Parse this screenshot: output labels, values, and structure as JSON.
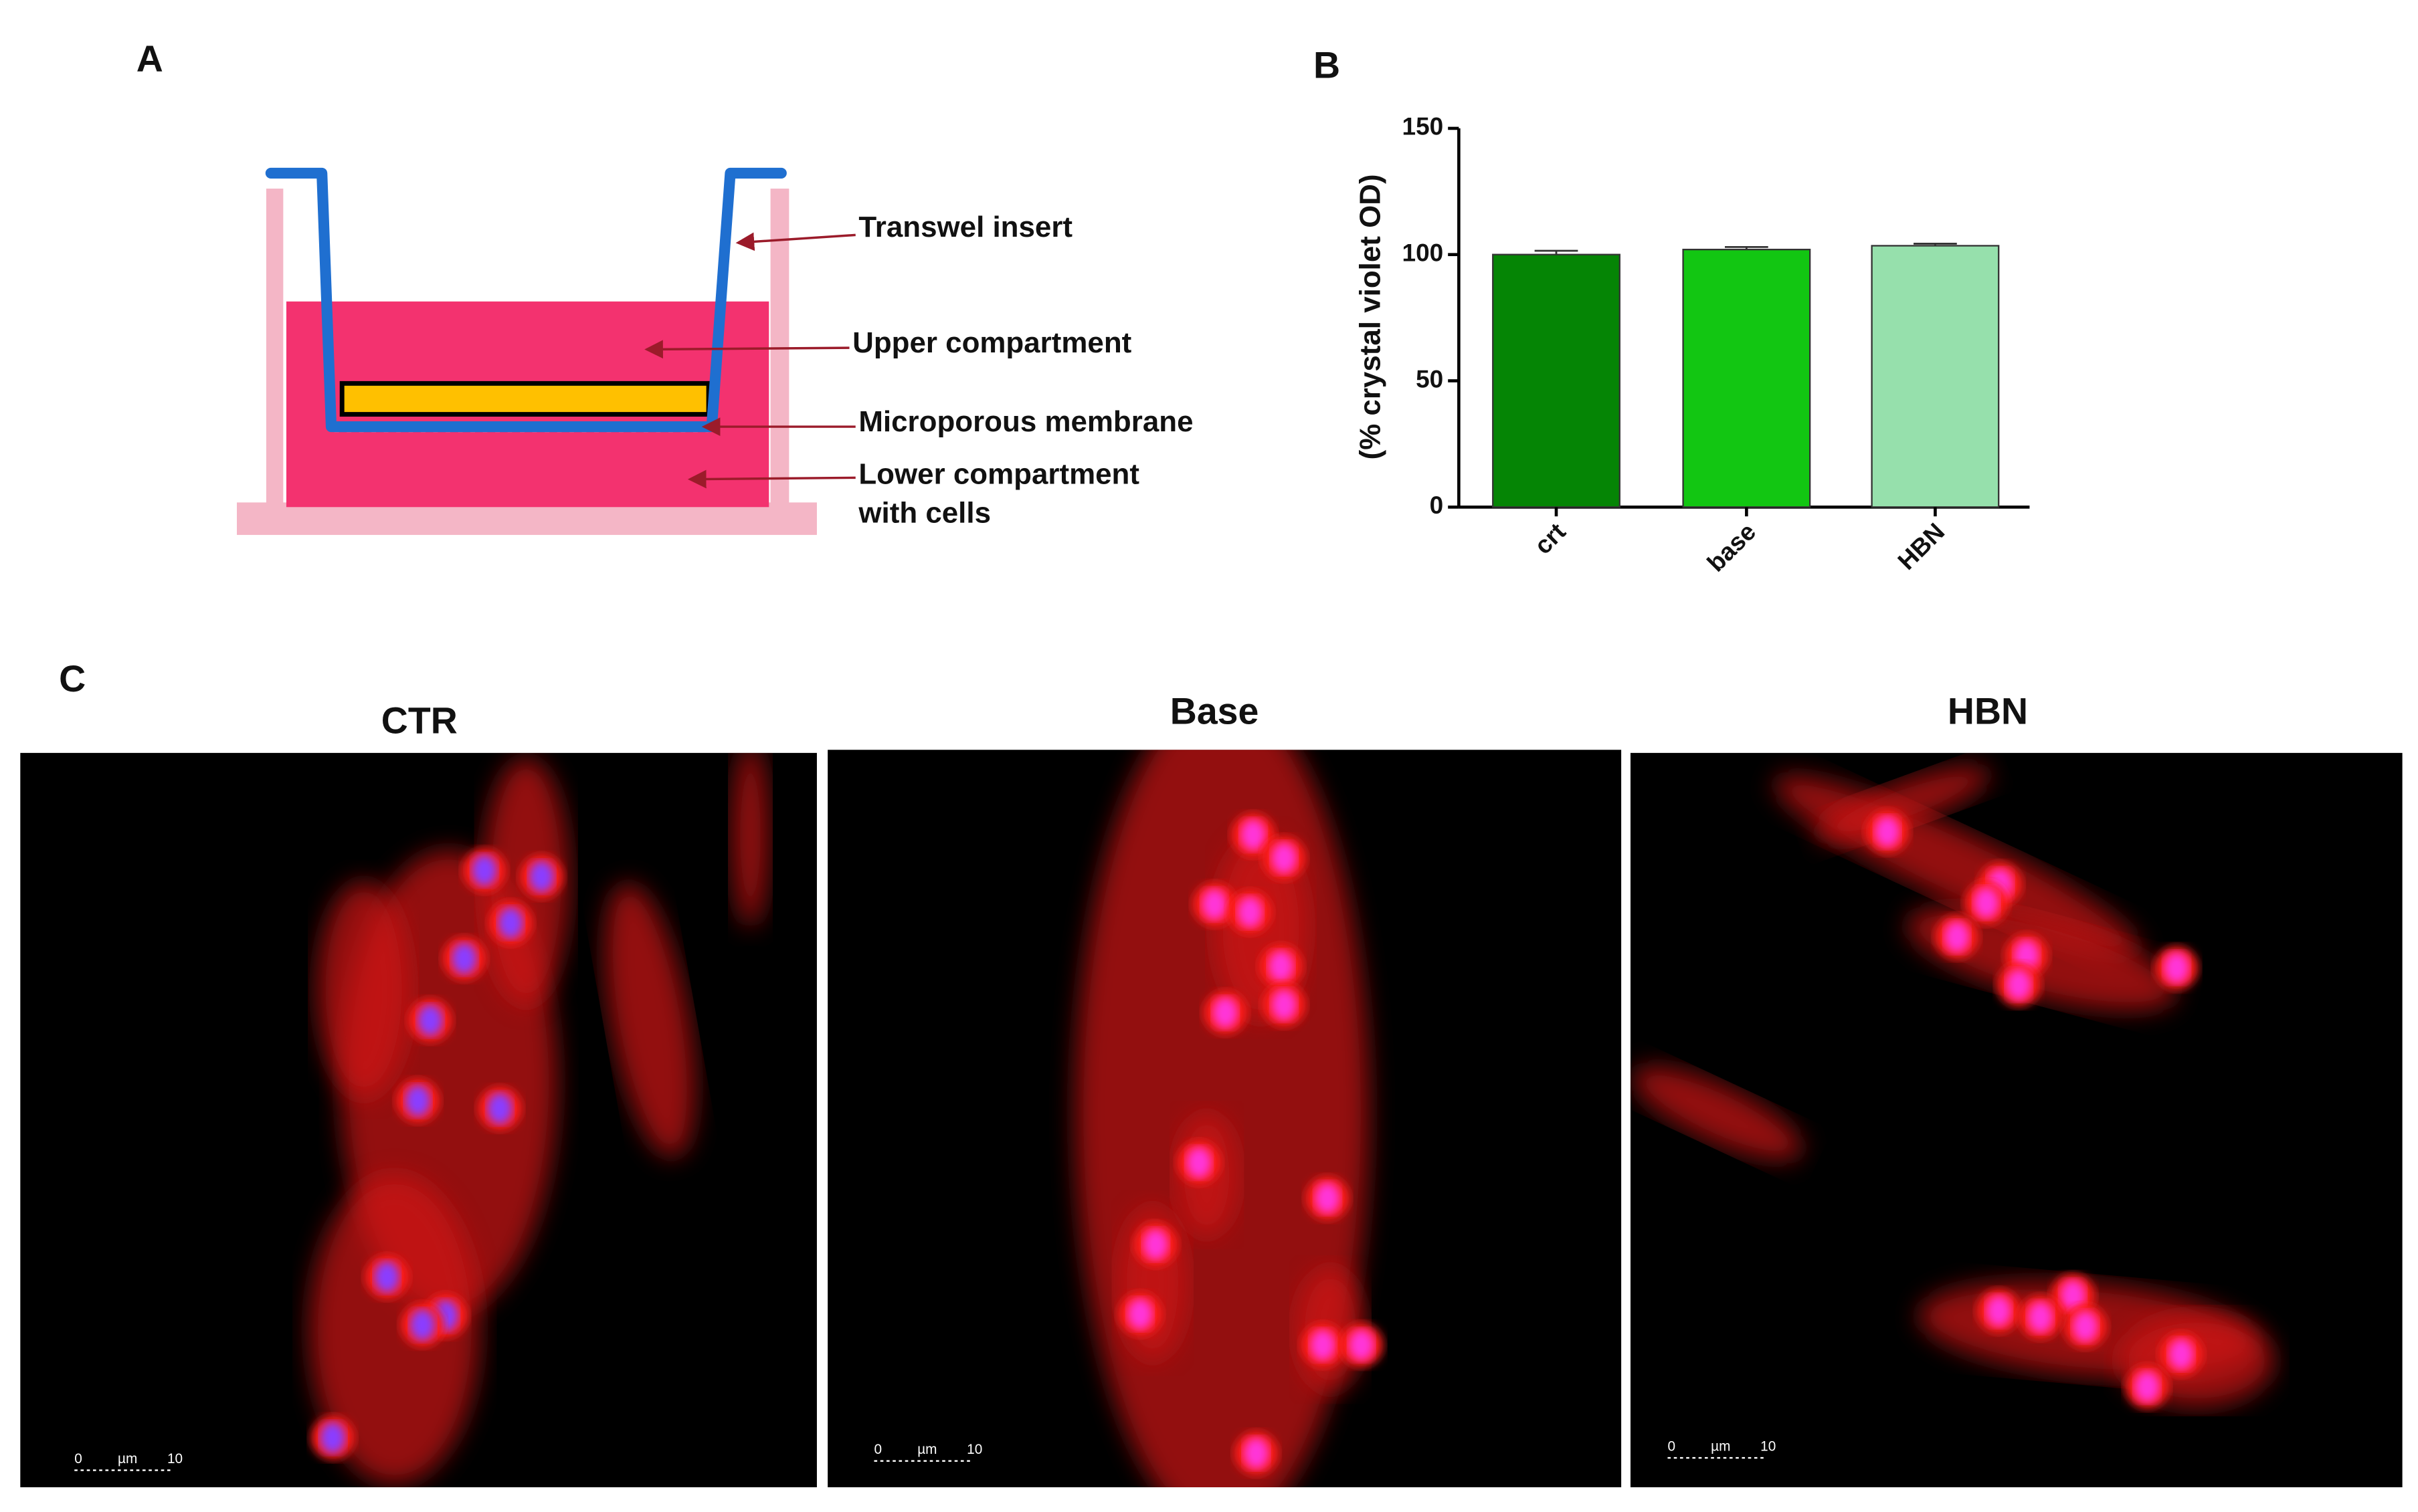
{
  "panel_labels": [
    "A",
    "B",
    "C"
  ],
  "diagram": {
    "labels": [
      "Transwel insert",
      "Upper compartment",
      "Microporous membrane",
      "Lower compartment",
      "with cells"
    ]
  },
  "chart_data": {
    "type": "bar",
    "y_label": "(% crystal violet OD)",
    "categories": [
      "crt",
      "base",
      "HBN"
    ],
    "values": [
      100,
      102,
      103.5
    ],
    "errors": [
      1.5,
      1,
      0.8
    ],
    "colors": [
      "#058505",
      "#12c612",
      "#96e0ac"
    ],
    "ylim": [
      0,
      150
    ],
    "yticks": [
      0,
      50,
      100,
      150
    ]
  },
  "micrographs": [
    {
      "title": "CTR",
      "scale_bar": [
        "0",
        "µm",
        "10"
      ]
    },
    {
      "title": "Base",
      "scale_bar": [
        "0",
        "µm",
        "10"
      ]
    },
    {
      "title": "HBN",
      "scale_bar": [
        "0",
        "µm",
        "10"
      ]
    }
  ]
}
